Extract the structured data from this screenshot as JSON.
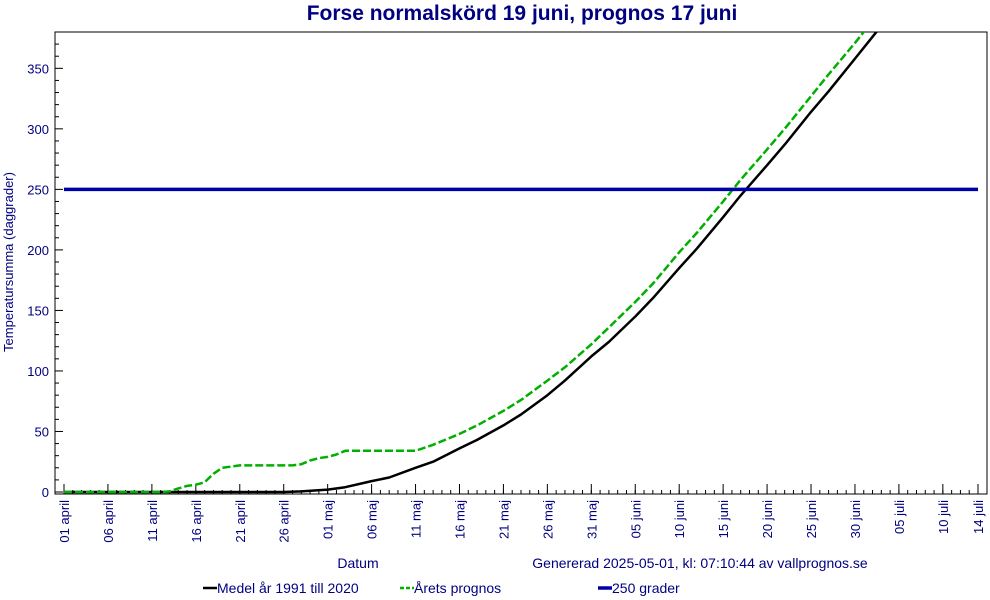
{
  "chart_data": {
    "type": "line",
    "title": "Forse normalskörd 19 juni, prognos 17 juni",
    "ylabel": "Temperatursumma (daggrader)",
    "xlabel": "Datum",
    "generated": "Genererad 2025-05-01, kl: 07:10:44 av vallprognos.se",
    "ylim": [
      0,
      380
    ],
    "xlim": [
      "2025-04-01",
      "2025-07-14"
    ],
    "y_ticks": [
      0,
      50,
      100,
      150,
      200,
      250,
      300,
      350
    ],
    "x_ticks": [
      {
        "date": "2025-04-01",
        "label": "01 april"
      },
      {
        "date": "2025-04-06",
        "label": "06 april"
      },
      {
        "date": "2025-04-11",
        "label": "11 april"
      },
      {
        "date": "2025-04-16",
        "label": "16 april"
      },
      {
        "date": "2025-04-21",
        "label": "21 april"
      },
      {
        "date": "2025-04-26",
        "label": "26 april"
      },
      {
        "date": "2025-05-01",
        "label": "01 maj"
      },
      {
        "date": "2025-05-06",
        "label": "06 maj"
      },
      {
        "date": "2025-05-11",
        "label": "11 maj"
      },
      {
        "date": "2025-05-16",
        "label": "16 maj"
      },
      {
        "date": "2025-05-21",
        "label": "21 maj"
      },
      {
        "date": "2025-05-26",
        "label": "26 maj"
      },
      {
        "date": "2025-05-31",
        "label": "31 maj"
      },
      {
        "date": "2025-06-05",
        "label": "05 juni"
      },
      {
        "date": "2025-06-10",
        "label": "10 juni"
      },
      {
        "date": "2025-06-15",
        "label": "15 juni"
      },
      {
        "date": "2025-06-20",
        "label": "20 juni"
      },
      {
        "date": "2025-06-25",
        "label": "25 juni"
      },
      {
        "date": "2025-06-30",
        "label": "30 juni"
      },
      {
        "date": "2025-07-05",
        "label": "05 juli"
      },
      {
        "date": "2025-07-10",
        "label": "10 juli"
      },
      {
        "date": "2025-07-14",
        "label": "14 juli"
      }
    ],
    "series": [
      {
        "name": "Medel år 1991 till 2020",
        "color": "#000000",
        "style": "solid",
        "points": [
          [
            "2025-04-01",
            0
          ],
          [
            "2025-04-13",
            0
          ],
          [
            "2025-04-26",
            0
          ],
          [
            "2025-04-28",
            0.5
          ],
          [
            "2025-05-01",
            2
          ],
          [
            "2025-05-03",
            4
          ],
          [
            "2025-05-06",
            9
          ],
          [
            "2025-05-08",
            12
          ],
          [
            "2025-05-11",
            20
          ],
          [
            "2025-05-13",
            25
          ],
          [
            "2025-05-16",
            36
          ],
          [
            "2025-05-18",
            43
          ],
          [
            "2025-05-21",
            55
          ],
          [
            "2025-05-23",
            64
          ],
          [
            "2025-05-26",
            80
          ],
          [
            "2025-05-28",
            92
          ],
          [
            "2025-05-31",
            112
          ],
          [
            "2025-06-02",
            124
          ],
          [
            "2025-06-05",
            145
          ],
          [
            "2025-06-07",
            160
          ],
          [
            "2025-06-10",
            185
          ],
          [
            "2025-06-12",
            201
          ],
          [
            "2025-06-15",
            227
          ],
          [
            "2025-06-17",
            245
          ],
          [
            "2025-06-20",
            270
          ],
          [
            "2025-06-22",
            287
          ],
          [
            "2025-06-25",
            314
          ],
          [
            "2025-06-27",
            331
          ],
          [
            "2025-06-30",
            358
          ],
          [
            "2025-07-02",
            376
          ],
          [
            "2025-07-05",
            403
          ]
        ]
      },
      {
        "name": "Årets prognos",
        "color": "#00b000",
        "style": "dashed",
        "points": [
          [
            "2025-04-01",
            0
          ],
          [
            "2025-04-12",
            0
          ],
          [
            "2025-04-13",
            0.5
          ],
          [
            "2025-04-14",
            3
          ],
          [
            "2025-04-15",
            5
          ],
          [
            "2025-04-16",
            6
          ],
          [
            "2025-04-17",
            8
          ],
          [
            "2025-04-18",
            15
          ],
          [
            "2025-04-19",
            20
          ],
          [
            "2025-04-21",
            22
          ],
          [
            "2025-04-24",
            22
          ],
          [
            "2025-04-27",
            22
          ],
          [
            "2025-04-28",
            23
          ],
          [
            "2025-04-29",
            26
          ],
          [
            "2025-04-30",
            28
          ],
          [
            "2025-05-01",
            29
          ],
          [
            "2025-05-02",
            31
          ],
          [
            "2025-05-03",
            34
          ],
          [
            "2025-05-06",
            34
          ],
          [
            "2025-05-11",
            34
          ],
          [
            "2025-05-13",
            39
          ],
          [
            "2025-05-16",
            48
          ],
          [
            "2025-05-18",
            55
          ],
          [
            "2025-05-21",
            67
          ],
          [
            "2025-05-23",
            76
          ],
          [
            "2025-05-26",
            92
          ],
          [
            "2025-05-28",
            103
          ],
          [
            "2025-05-31",
            122
          ],
          [
            "2025-06-02",
            136
          ],
          [
            "2025-06-05",
            157
          ],
          [
            "2025-06-07",
            172
          ],
          [
            "2025-06-10",
            198
          ],
          [
            "2025-06-12",
            214
          ],
          [
            "2025-06-15",
            240
          ],
          [
            "2025-06-17",
            258
          ],
          [
            "2025-06-20",
            283
          ],
          [
            "2025-06-22",
            300
          ],
          [
            "2025-06-25",
            327
          ],
          [
            "2025-06-27",
            345
          ],
          [
            "2025-06-30",
            371
          ],
          [
            "2025-07-02",
            389
          ],
          [
            "2025-07-05",
            415
          ]
        ]
      },
      {
        "name": "250 grader",
        "color": "#0000aa",
        "style": "solid",
        "points": [
          [
            "2025-04-01",
            250
          ],
          [
            "2025-07-14",
            250
          ]
        ]
      }
    ],
    "legend": [
      "Medel år 1991 till 2020",
      "Årets prognos",
      "250 grader"
    ],
    "legend_position": "bottom",
    "grid": false
  }
}
